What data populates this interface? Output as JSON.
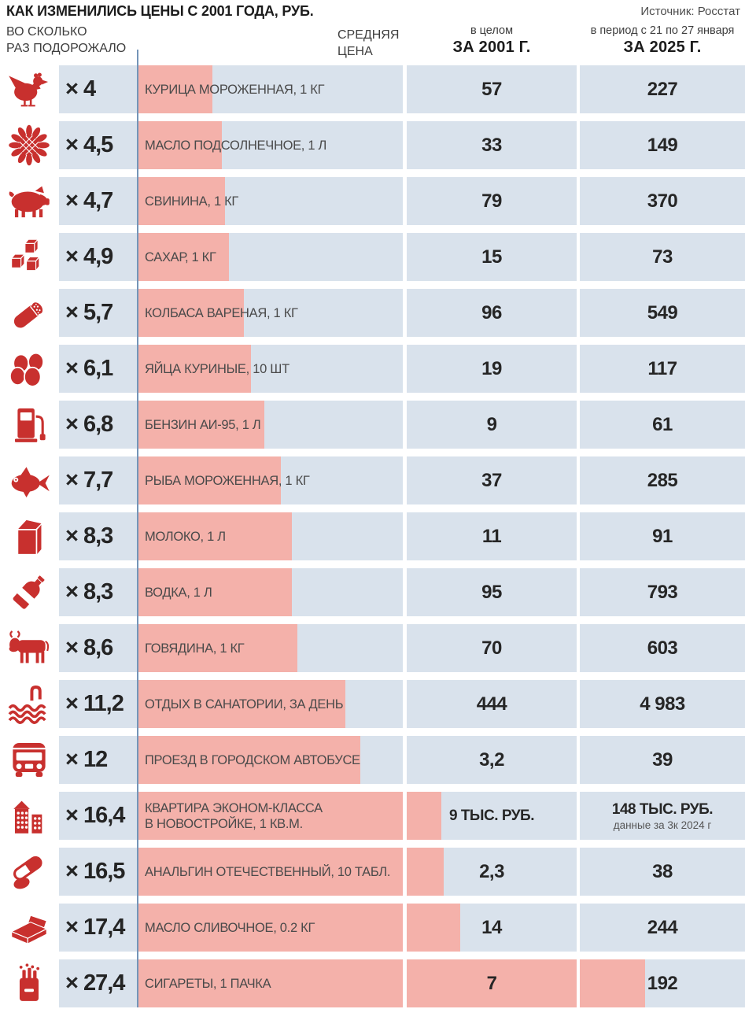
{
  "header": {
    "title": "КАК ИЗМЕНИЛИСЬ ЦЕНЫ С 2001 ГОДА, РУБ.",
    "source": "Источник: Росстат",
    "col_multiplier": "ВО СКОЛЬКО\nРАЗ ПОДОРОЖАЛО",
    "col_avg_price": "СРЕДНЯЯ\nЦЕНА",
    "col_2001_sub": "в целом",
    "col_2001": "ЗА 2001 Г.",
    "col_2025_sub": "в период с 21 по 27 января",
    "col_2025": "ЗА 2025 Г."
  },
  "colors": {
    "row_background": "#d9e2ec",
    "bar_pink": "#f4b1aa",
    "icon_red": "#c8302e",
    "baseline_blue": "#7495b8"
  },
  "rows": [
    {
      "icon": "chicken-icon",
      "multiplier": "× 4",
      "multiplier_value": 4,
      "label": "КУРИЦА МОРОЖЕННАЯ, 1 КГ",
      "price_2001": "57",
      "price_2025": "227"
    },
    {
      "icon": "sunflower-icon",
      "multiplier": "× 4,5",
      "multiplier_value": 4.5,
      "label": "МАСЛО ПОДСОЛНЕЧНОЕ, 1 Л",
      "price_2001": "33",
      "price_2025": "149"
    },
    {
      "icon": "pig-icon",
      "multiplier": "× 4,7",
      "multiplier_value": 4.7,
      "label": "СВИНИНА, 1 КГ",
      "price_2001": "79",
      "price_2025": "370"
    },
    {
      "icon": "sugar-icon",
      "multiplier": "× 4,9",
      "multiplier_value": 4.9,
      "label": "САХАР, 1 КГ",
      "price_2001": "15",
      "price_2025": "73"
    },
    {
      "icon": "sausage-icon",
      "multiplier": "× 5,7",
      "multiplier_value": 5.7,
      "label": "КОЛБАСА ВАРЕНАЯ, 1 КГ",
      "price_2001": "96",
      "price_2025": "549"
    },
    {
      "icon": "eggs-icon",
      "multiplier": "× 6,1",
      "multiplier_value": 6.1,
      "label": "ЯЙЦА КУРИНЫЕ, 10 ШТ",
      "price_2001": "19",
      "price_2025": "117"
    },
    {
      "icon": "fuel-pump-icon",
      "multiplier": "× 6,8",
      "multiplier_value": 6.8,
      "label": "БЕНЗИН АИ-95, 1 Л",
      "price_2001": "9",
      "price_2025": "61"
    },
    {
      "icon": "fish-icon",
      "multiplier": "× 7,7",
      "multiplier_value": 7.7,
      "label": "РЫБА МОРОЖЕННАЯ, 1 КГ",
      "price_2001": "37",
      "price_2025": "285"
    },
    {
      "icon": "milk-icon",
      "multiplier": "× 8,3",
      "multiplier_value": 8.3,
      "label": "МОЛОКО, 1 Л",
      "price_2001": "11",
      "price_2025": "91"
    },
    {
      "icon": "vodka-bottle-icon",
      "multiplier": "× 8,3",
      "multiplier_value": 8.3,
      "label": "ВОДКА, 1 Л",
      "price_2001": "95",
      "price_2025": "793"
    },
    {
      "icon": "cow-icon",
      "multiplier": "× 8,6",
      "multiplier_value": 8.6,
      "label": "ГОВЯДИНА, 1 КГ",
      "price_2001": "70",
      "price_2025": "603"
    },
    {
      "icon": "pool-icon",
      "multiplier": "× 11,2",
      "multiplier_value": 11.2,
      "label": "ОТДЫХ В САНАТОРИИ, ЗА ДЕНЬ",
      "price_2001": "444",
      "price_2025": "4 983"
    },
    {
      "icon": "bus-icon",
      "multiplier": "× 12",
      "multiplier_value": 12,
      "label": "ПРОЕЗД В ГОРОДСКОМ АВТОБУСЕ",
      "price_2001": "3,2",
      "price_2025": "39"
    },
    {
      "icon": "building-icon",
      "multiplier": "× 16,4",
      "multiplier_value": 16.4,
      "label": "КВАРТИРА ЭКОНОМ-КЛАССА\nВ НОВОСТРОЙКЕ, 1 КВ.М.",
      "price_2001": "9 ТЫС. РУБ.",
      "price_2025": "148 ТЫС. РУБ.",
      "note_2025": "данные за 3к 2024 г"
    },
    {
      "icon": "pills-icon",
      "multiplier": "× 16,5",
      "multiplier_value": 16.5,
      "label": "АНАЛЬГИН ОТЕЧЕСТВЕННЫЙ, 10 ТАБЛ.",
      "price_2001": "2,3",
      "price_2025": "38"
    },
    {
      "icon": "butter-icon",
      "multiplier": "× 17,4",
      "multiplier_value": 17.4,
      "label": "МАСЛО СЛИВОЧНОЕ, 0.2 КГ",
      "price_2001": "14",
      "price_2025": "244"
    },
    {
      "icon": "cigarettes-icon",
      "multiplier": "× 27,4",
      "multiplier_value": 27.4,
      "label": "СИГАРЕТЫ, 1 ПАЧКА",
      "price_2001": "7",
      "price_2025": "192"
    }
  ],
  "chart_data": {
    "type": "bar",
    "orientation": "horizontal",
    "title": "КАК ИЗМЕНИЛИСЬ ЦЕНЫ С 2001 ГОДА, РУБ.",
    "source": "Источник: Росстат",
    "categories": [
      "КУРИЦА МОРОЖЕННАЯ, 1 КГ",
      "МАСЛО ПОДСОЛНЕЧНОЕ, 1 Л",
      "СВИНИНА, 1 КГ",
      "САХАР, 1 КГ",
      "КОЛБАСА ВАРЕНАЯ, 1 КГ",
      "ЯЙЦА КУРИНЫЕ, 10 ШТ",
      "БЕНЗИН АИ-95, 1 Л",
      "РЫБА МОРОЖЕННАЯ, 1 КГ",
      "МОЛОКО, 1 Л",
      "ВОДКА, 1 Л",
      "ГОВЯДИНА, 1 КГ",
      "ОТДЫХ В САНАТОРИИ, ЗА ДЕНЬ",
      "ПРОЕЗД В ГОРОДСКОМ АВТОБУСЕ",
      "КВАРТИРА ЭКОНОМ-КЛАССА В НОВОСТРОЙКЕ, 1 КВ.М.",
      "АНАЛЬГИН ОТЕЧЕСТВЕННЫЙ, 10 ТАБЛ.",
      "МАСЛО СЛИВОЧНОЕ, 0.2 КГ",
      "СИГАРЕТЫ, 1 ПАЧКА"
    ],
    "series": [
      {
        "name": "Во сколько раз подорожало",
        "values": [
          4,
          4.5,
          4.7,
          4.9,
          5.7,
          6.1,
          6.8,
          7.7,
          8.3,
          8.3,
          8.6,
          11.2,
          12,
          16.4,
          16.5,
          17.4,
          27.4
        ]
      },
      {
        "name": "Средняя цена за 2001 г., руб.",
        "values": [
          57,
          33,
          79,
          15,
          96,
          19,
          9,
          37,
          11,
          95,
          70,
          444,
          3.2,
          9000,
          2.3,
          14,
          7
        ]
      },
      {
        "name": "Средняя цена за 2025 г. (21–27 января), руб.",
        "values": [
          227,
          149,
          370,
          73,
          549,
          117,
          61,
          285,
          91,
          793,
          603,
          4983,
          39,
          148000,
          38,
          244,
          192
        ]
      }
    ],
    "annotations": [
      "данные за 3к 2024 г (квартира эконом-класса)"
    ],
    "legend_position": "none",
    "grid": false
  }
}
